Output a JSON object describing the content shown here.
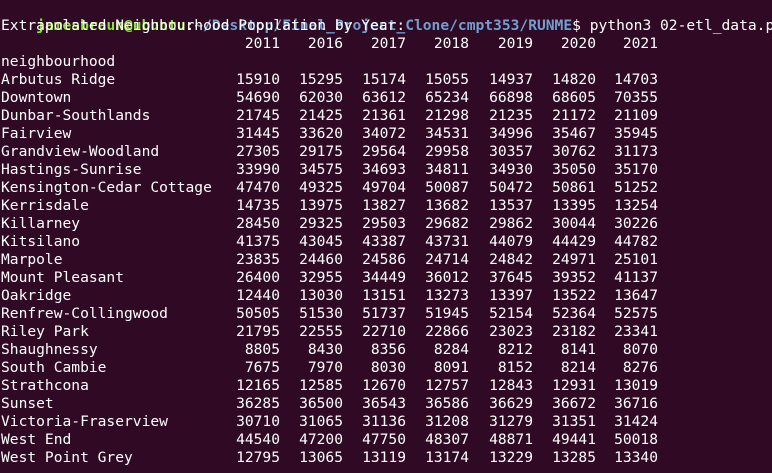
{
  "prompt": {
    "user_host": "jamesbraun@ubuntu",
    "separator": ":",
    "path": "~/Desktop/Final_Project_Clone/cmpt353/RUNME",
    "symbol": "$",
    "command": " python3 02-etl_data.py"
  },
  "output": {
    "title": "Extrapolated Neighbourhood Population by Year:",
    "index_name": "neighbourhood",
    "years": [
      "2011",
      "2016",
      "2017",
      "2018",
      "2019",
      "2020",
      "2021"
    ],
    "rows": [
      {
        "name": "Arbutus Ridge",
        "values": [
          "15910",
          "15295",
          "15174",
          "15055",
          "14937",
          "14820",
          "14703"
        ]
      },
      {
        "name": "Downtown",
        "values": [
          "54690",
          "62030",
          "63612",
          "65234",
          "66898",
          "68605",
          "70355"
        ]
      },
      {
        "name": "Dunbar-Southlands",
        "values": [
          "21745",
          "21425",
          "21361",
          "21298",
          "21235",
          "21172",
          "21109"
        ]
      },
      {
        "name": "Fairview",
        "values": [
          "31445",
          "33620",
          "34072",
          "34531",
          "34996",
          "35467",
          "35945"
        ]
      },
      {
        "name": "Grandview-Woodland",
        "values": [
          "27305",
          "29175",
          "29564",
          "29958",
          "30357",
          "30762",
          "31173"
        ]
      },
      {
        "name": "Hastings-Sunrise",
        "values": [
          "33990",
          "34575",
          "34693",
          "34811",
          "34930",
          "35050",
          "35170"
        ]
      },
      {
        "name": "Kensington-Cedar Cottage",
        "values": [
          "47470",
          "49325",
          "49704",
          "50087",
          "50472",
          "50861",
          "51252"
        ]
      },
      {
        "name": "Kerrisdale",
        "values": [
          "14735",
          "13975",
          "13827",
          "13682",
          "13537",
          "13395",
          "13254"
        ]
      },
      {
        "name": "Killarney",
        "values": [
          "28450",
          "29325",
          "29503",
          "29682",
          "29862",
          "30044",
          "30226"
        ]
      },
      {
        "name": "Kitsilano",
        "values": [
          "41375",
          "43045",
          "43387",
          "43731",
          "44079",
          "44429",
          "44782"
        ]
      },
      {
        "name": "Marpole",
        "values": [
          "23835",
          "24460",
          "24586",
          "24714",
          "24842",
          "24971",
          "25101"
        ]
      },
      {
        "name": "Mount Pleasant",
        "values": [
          "26400",
          "32955",
          "34449",
          "36012",
          "37645",
          "39352",
          "41137"
        ]
      },
      {
        "name": "Oakridge",
        "values": [
          "12440",
          "13030",
          "13151",
          "13273",
          "13397",
          "13522",
          "13647"
        ]
      },
      {
        "name": "Renfrew-Collingwood",
        "values": [
          "50505",
          "51530",
          "51737",
          "51945",
          "52154",
          "52364",
          "52575"
        ]
      },
      {
        "name": "Riley Park",
        "values": [
          "21795",
          "22555",
          "22710",
          "22866",
          "23023",
          "23182",
          "23341"
        ]
      },
      {
        "name": "Shaughnessy",
        "values": [
          "8805",
          "8430",
          "8356",
          "8284",
          "8212",
          "8141",
          "8070"
        ]
      },
      {
        "name": "South Cambie",
        "values": [
          "7675",
          "7970",
          "8030",
          "8091",
          "8152",
          "8214",
          "8276"
        ]
      },
      {
        "name": "Strathcona",
        "values": [
          "12165",
          "12585",
          "12670",
          "12757",
          "12843",
          "12931",
          "13019"
        ]
      },
      {
        "name": "Sunset",
        "values": [
          "36285",
          "36500",
          "36543",
          "36586",
          "36629",
          "36672",
          "36716"
        ]
      },
      {
        "name": "Victoria-Fraserview",
        "values": [
          "30710",
          "31065",
          "31136",
          "31208",
          "31279",
          "31351",
          "31424"
        ]
      },
      {
        "name": "West End",
        "values": [
          "44540",
          "47200",
          "47750",
          "48307",
          "48871",
          "49441",
          "50018"
        ]
      },
      {
        "name": "West Point Grey",
        "values": [
          "12795",
          "13065",
          "13119",
          "13174",
          "13229",
          "13285",
          "13340"
        ]
      }
    ]
  },
  "colors": {
    "background": "#300a24",
    "text": "#ffffff",
    "prompt_user": "#8ae234",
    "prompt_path": "#729fcf"
  }
}
